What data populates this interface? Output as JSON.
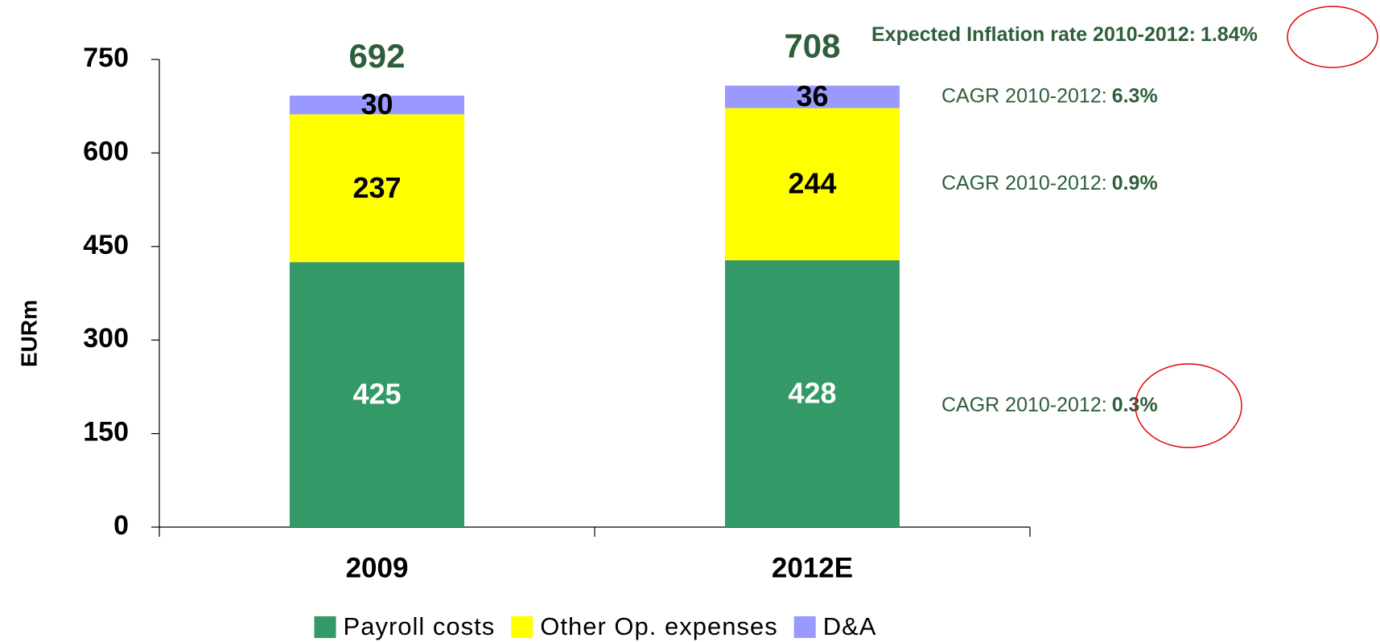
{
  "chart_data": {
    "type": "stacked_bar",
    "y_label": "EURm",
    "categories": [
      "2009",
      "2012E"
    ],
    "series": [
      {
        "name": "Payroll costs",
        "color": "#339966",
        "label_color": "#ffffff",
        "values": [
          425,
          428
        ]
      },
      {
        "name": "Other Op. expenses",
        "color": "#ffff00",
        "label_color": "#000000",
        "values": [
          237,
          244
        ]
      },
      {
        "name": "D&A",
        "color": "#9999ff",
        "label_color": "#000000",
        "values": [
          30,
          36
        ]
      }
    ],
    "totals": [
      692,
      708
    ],
    "ylim": [
      0,
      750
    ],
    "yticks": [
      0,
      150,
      300,
      450,
      600,
      750
    ],
    "inflation_note": {
      "text": "Expected Inflation rate  2010-2012:",
      "value": "1.84%"
    },
    "cagr_notes": [
      {
        "text": "CAGR 2010-2012:",
        "value": "0.3%"
      },
      {
        "text": "CAGR 2010-2012:",
        "value": "0.9%"
      },
      {
        "text": "CAGR 2010-2012:",
        "value": "6.3%"
      }
    ]
  }
}
